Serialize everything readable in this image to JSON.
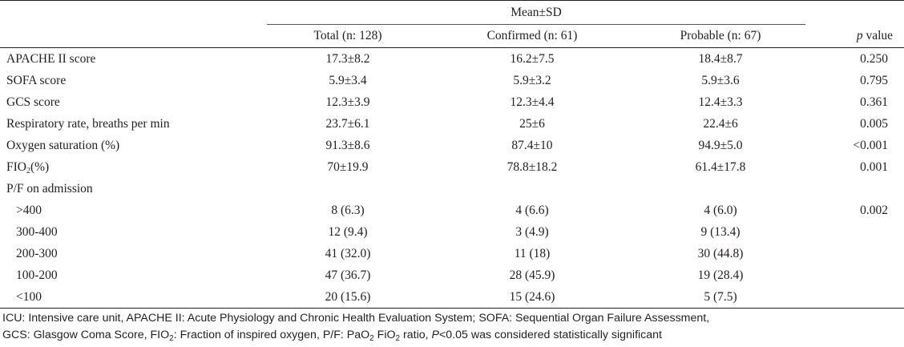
{
  "table": {
    "group_header": "Mean±SD",
    "columns": [
      "Total (n: 128)",
      "Confirmed (n: 61)",
      "Probable (n: 67)"
    ],
    "p_label_italic": "p",
    "p_label_rest": " value",
    "rows": [
      {
        "label": "APACHE II score",
        "total": "17.3±8.2",
        "confirmed": "16.2±7.5",
        "probable": "18.4±8.7",
        "p": "0.250"
      },
      {
        "label": "SOFA score",
        "total": "5.9±3.4",
        "confirmed": "5.9±3.2",
        "probable": "5.9±3.6",
        "p": "0.795"
      },
      {
        "label": "GCS score",
        "total": "12.3±3.9",
        "confirmed": "12.3±4.4",
        "probable": "12.4±3.3",
        "p": "0.361"
      },
      {
        "label": "Respiratory rate, breaths per min",
        "total": "23.7±6.1",
        "confirmed": "25±6",
        "probable": "22.4±6",
        "p": "0.005"
      },
      {
        "label": "Oxygen saturation (%)",
        "total": "91.3±8.6",
        "confirmed": "87.4±10",
        "probable": "94.9±5.0",
        "p": "<0.001"
      },
      {
        "label_pre": "FIO",
        "label_sub": "2",
        "label_post": "(%)",
        "total": "70±19.9",
        "confirmed": "78.8±18.2",
        "probable": "61.4±17.8",
        "p": "0.001"
      },
      {
        "label": "P/F on admission",
        "total": "",
        "confirmed": "",
        "probable": "",
        "p": ""
      },
      {
        "label": ">400",
        "total": "8 (6.3)",
        "confirmed": "4 (6.6)",
        "probable": "4 (6.0)",
        "p": "0.002"
      },
      {
        "label": "300-400",
        "total": "12 (9.4)",
        "confirmed": "3 (4.9)",
        "probable": "9 (13.4)",
        "p": ""
      },
      {
        "label": "200-300",
        "total": "41 (32.0)",
        "confirmed": "11 (18)",
        "probable": "30 (44.8)",
        "p": ""
      },
      {
        "label": "100-200",
        "total": "47 (36.7)",
        "confirmed": "28 (45.9)",
        "probable": "19 (28.4)",
        "p": ""
      },
      {
        "label": "<100",
        "total": "20 (15.6)",
        "confirmed": "15 (24.6)",
        "probable": "5 (7.5)",
        "p": ""
      }
    ]
  },
  "footnote": {
    "line1": "ICU: Intensive care unit, APACHE II: Acute Physiology and Chronic Health Evaluation System; SOFA: Sequential Organ Failure Assessment,",
    "l2_a": "GCS: Glasgow Coma Score, FIO",
    "l2_sub1": "2",
    "l2_b": ": Fraction of inspired oxygen, P/F: PaO",
    "l2_sub2": "2",
    "l2_c": " FiO",
    "l2_sub3": "2",
    "l2_d": " ratio, ",
    "l2_p": "P",
    "l2_e": "<0.05 was considered statistically significant"
  }
}
